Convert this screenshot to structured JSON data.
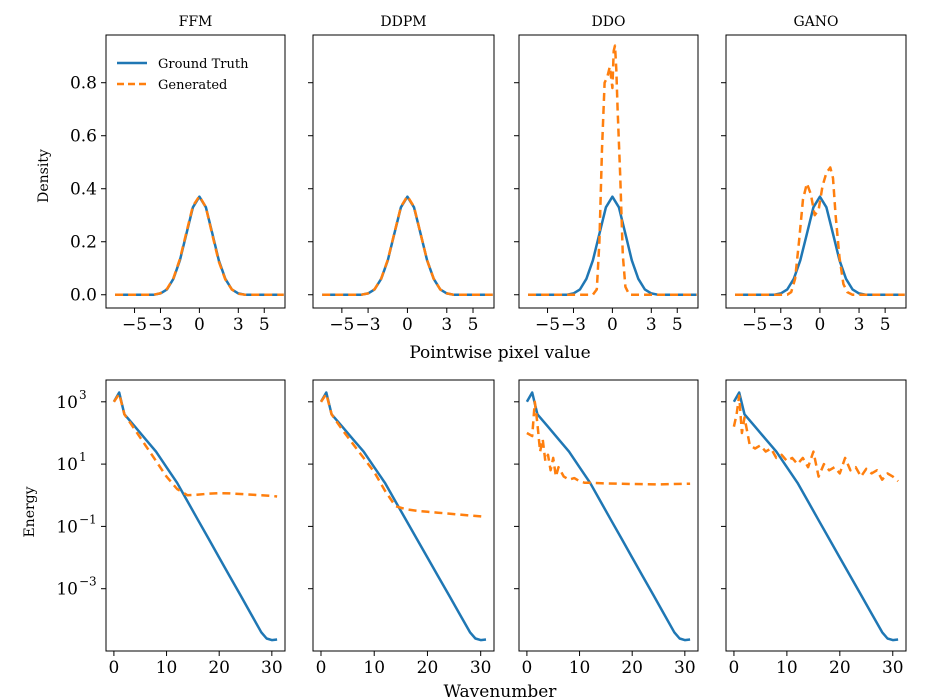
{
  "colors": {
    "ground_truth": "#1f77b4",
    "generated": "#ff7f0e"
  },
  "legend": {
    "ground_truth": "Ground Truth",
    "generated": "Generated"
  },
  "row_labels": {
    "top_xlabel": "Pointwise pixel value",
    "top_ylabel": "Density",
    "bottom_xlabel": "Wavenumber",
    "bottom_ylabel": "Energy"
  },
  "panels": [
    {
      "title": "FFM"
    },
    {
      "title": "DDPM"
    },
    {
      "title": "DDO"
    },
    {
      "title": "GANO"
    }
  ],
  "chart_data": [
    {
      "type": "line",
      "row": "density",
      "title": "FFM",
      "xlabel": "Pointwise pixel value",
      "ylabel": "Density",
      "xlim": [
        -7.2,
        6.6
      ],
      "ylim": [
        -0.05,
        0.98
      ],
      "xticks": [
        -5,
        -3,
        0,
        3,
        5
      ],
      "xtick_labels": [
        "−5",
        "−3",
        "0",
        "3",
        "5"
      ],
      "yticks": [
        0.0,
        0.2,
        0.4,
        0.6,
        0.8
      ],
      "ytick_labels": [
        "0.0",
        "0.2",
        "0.4",
        "0.6",
        "0.8"
      ],
      "legend_position": "top-left",
      "series": [
        {
          "name": "Ground Truth",
          "x": [
            -6.5,
            -3.5,
            -3,
            -2.5,
            -2,
            -1.5,
            -1,
            -0.5,
            0,
            0.5,
            1,
            1.5,
            2,
            2.5,
            3,
            3.5,
            6.5
          ],
          "y": [
            0,
            0,
            0.005,
            0.02,
            0.06,
            0.13,
            0.23,
            0.33,
            0.37,
            0.33,
            0.23,
            0.13,
            0.06,
            0.02,
            0.005,
            0,
            0
          ]
        },
        {
          "name": "Generated",
          "x": [
            -6.5,
            -3.5,
            -3,
            -2.5,
            -2,
            -1.5,
            -1,
            -0.5,
            0,
            0.5,
            1,
            1.5,
            2,
            2.5,
            3,
            3.5,
            6.5
          ],
          "y": [
            0,
            0,
            0.006,
            0.022,
            0.062,
            0.135,
            0.235,
            0.335,
            0.372,
            0.33,
            0.225,
            0.125,
            0.058,
            0.02,
            0.004,
            0,
            0
          ]
        }
      ]
    },
    {
      "type": "line",
      "row": "density",
      "title": "DDPM",
      "xlim": [
        -7.2,
        6.6
      ],
      "ylim": [
        -0.05,
        0.98
      ],
      "xticks": [
        -5,
        -3,
        0,
        3,
        5
      ],
      "xtick_labels": [
        "−5",
        "−3",
        "0",
        "3",
        "5"
      ],
      "yticks": [
        0.0,
        0.2,
        0.4,
        0.6,
        0.8
      ],
      "series": [
        {
          "name": "Ground Truth",
          "x": [
            -6.5,
            -3.5,
            -3,
            -2.5,
            -2,
            -1.5,
            -1,
            -0.5,
            0,
            0.5,
            1,
            1.5,
            2,
            2.5,
            3,
            3.5,
            6.5
          ],
          "y": [
            0,
            0,
            0.005,
            0.02,
            0.06,
            0.13,
            0.23,
            0.33,
            0.37,
            0.33,
            0.23,
            0.13,
            0.06,
            0.02,
            0.005,
            0,
            0
          ]
        },
        {
          "name": "Generated",
          "x": [
            -6.5,
            -3.5,
            -3,
            -2.5,
            -2,
            -1.5,
            -1,
            -0.5,
            0,
            0.5,
            1,
            1.5,
            2,
            2.5,
            3,
            3.5,
            6.5
          ],
          "y": [
            0,
            0,
            0.005,
            0.021,
            0.061,
            0.132,
            0.232,
            0.332,
            0.372,
            0.332,
            0.23,
            0.13,
            0.06,
            0.02,
            0.005,
            0,
            0
          ]
        }
      ]
    },
    {
      "type": "line",
      "row": "density",
      "title": "DDO",
      "xlim": [
        -7.2,
        6.6
      ],
      "ylim": [
        -0.05,
        0.98
      ],
      "xticks": [
        -5,
        -3,
        0,
        3,
        5
      ],
      "xtick_labels": [
        "−5",
        "−3",
        "0",
        "3",
        "5"
      ],
      "yticks": [
        0.0,
        0.2,
        0.4,
        0.6,
        0.8
      ],
      "series": [
        {
          "name": "Ground Truth",
          "x": [
            -6.5,
            -3.5,
            -3,
            -2.5,
            -2,
            -1.5,
            -1,
            -0.5,
            0,
            0.5,
            1,
            1.5,
            2,
            2.5,
            3,
            3.5,
            6.5
          ],
          "y": [
            0,
            0,
            0.005,
            0.02,
            0.06,
            0.13,
            0.23,
            0.33,
            0.37,
            0.33,
            0.23,
            0.13,
            0.06,
            0.02,
            0.005,
            0,
            0
          ]
        },
        {
          "name": "Generated",
          "x": [
            -6.5,
            -1.5,
            -1.2,
            -1.0,
            -0.8,
            -0.6,
            -0.4,
            -0.2,
            0,
            0.1,
            0.2,
            0.3,
            0.4,
            0.6,
            0.8,
            1.0,
            1.3,
            6.5
          ],
          "y": [
            0,
            0,
            0.02,
            0.2,
            0.55,
            0.8,
            0.82,
            0.86,
            0.78,
            0.92,
            0.94,
            0.85,
            0.7,
            0.45,
            0.15,
            0.03,
            0,
            0
          ]
        }
      ]
    },
    {
      "type": "line",
      "row": "density",
      "title": "GANO",
      "xlim": [
        -7.2,
        6.6
      ],
      "ylim": [
        -0.05,
        0.98
      ],
      "xticks": [
        -5,
        -3,
        0,
        3,
        5
      ],
      "xtick_labels": [
        "−5",
        "−3",
        "0",
        "3",
        "5"
      ],
      "yticks": [
        0.0,
        0.2,
        0.4,
        0.6,
        0.8
      ],
      "series": [
        {
          "name": "Ground Truth",
          "x": [
            -6.5,
            -3.5,
            -3,
            -2.5,
            -2,
            -1.5,
            -1,
            -0.5,
            0,
            0.5,
            1,
            1.5,
            2,
            2.5,
            3,
            3.5,
            6.5
          ],
          "y": [
            0,
            0,
            0.005,
            0.02,
            0.06,
            0.13,
            0.23,
            0.33,
            0.37,
            0.33,
            0.23,
            0.13,
            0.06,
            0.02,
            0.005,
            0,
            0
          ]
        },
        {
          "name": "Generated",
          "x": [
            -6.5,
            -2.5,
            -2.2,
            -1.9,
            -1.6,
            -1.3,
            -1.0,
            -0.7,
            -0.4,
            -0.1,
            0.2,
            0.5,
            0.8,
            1.0,
            1.2,
            1.5,
            1.8,
            2.1,
            2.5,
            6.5
          ],
          "y": [
            0,
            0,
            0.01,
            0.06,
            0.2,
            0.36,
            0.42,
            0.38,
            0.3,
            0.32,
            0.41,
            0.46,
            0.48,
            0.44,
            0.3,
            0.14,
            0.04,
            0.01,
            0,
            0
          ]
        }
      ]
    },
    {
      "type": "line",
      "row": "spectrum",
      "title": "FFM",
      "xlabel": "Wavenumber",
      "ylabel": "Energy",
      "yscale": "log",
      "xlim": [
        -1.5,
        32.5
      ],
      "ylim_log10": [
        -5.0,
        3.7
      ],
      "xticks": [
        0,
        10,
        20,
        30
      ],
      "xtick_labels": [
        "0",
        "10",
        "20",
        "30"
      ],
      "yticks_log10": [
        3,
        1,
        -1,
        -3
      ],
      "ytick_labels": [
        "10",
        "10",
        "10",
        "10"
      ],
      "ytick_exponents": [
        "3",
        "1",
        "−1",
        "−3"
      ],
      "series": [
        {
          "name": "Ground Truth",
          "x": [
            0,
            1,
            2,
            4,
            6,
            8,
            10,
            12,
            14,
            16,
            18,
            20,
            22,
            24,
            26,
            28,
            29,
            30,
            31
          ],
          "log10y": [
            3.0,
            3.3,
            2.6,
            2.2,
            1.8,
            1.4,
            0.9,
            0.4,
            -0.2,
            -0.8,
            -1.4,
            -2.0,
            -2.6,
            -3.2,
            -3.8,
            -4.4,
            -4.6,
            -4.65,
            -4.63
          ]
        },
        {
          "name": "Generated",
          "x": [
            0,
            1,
            2,
            4,
            6,
            8,
            10,
            12,
            14,
            16,
            18,
            20,
            22,
            24,
            26,
            28,
            30,
            31
          ],
          "log10y": [
            3.0,
            3.25,
            2.6,
            2.1,
            1.6,
            1.1,
            0.6,
            0.2,
            0.0,
            0.02,
            0.05,
            0.07,
            0.06,
            0.04,
            0.02,
            0.0,
            -0.02,
            -0.04
          ]
        }
      ]
    },
    {
      "type": "line",
      "row": "spectrum",
      "title": "DDPM",
      "yscale": "log",
      "xlim": [
        -1.5,
        32.5
      ],
      "ylim_log10": [
        -5.0,
        3.7
      ],
      "xticks": [
        0,
        10,
        20,
        30
      ],
      "xtick_labels": [
        "0",
        "10",
        "20",
        "30"
      ],
      "series": [
        {
          "name": "Ground Truth",
          "x": [
            0,
            1,
            2,
            4,
            6,
            8,
            10,
            12,
            14,
            16,
            18,
            20,
            22,
            24,
            26,
            28,
            29,
            30,
            31
          ],
          "log10y": [
            3.0,
            3.3,
            2.6,
            2.2,
            1.8,
            1.4,
            0.9,
            0.4,
            -0.2,
            -0.8,
            -1.4,
            -2.0,
            -2.6,
            -3.2,
            -3.8,
            -4.4,
            -4.6,
            -4.65,
            -4.63
          ]
        },
        {
          "name": "Generated",
          "x": [
            0,
            1,
            2,
            4,
            6,
            8,
            10,
            12,
            14,
            16,
            18,
            20,
            22,
            24,
            26,
            28,
            30,
            31
          ],
          "log10y": [
            3.0,
            3.25,
            2.6,
            2.1,
            1.65,
            1.2,
            0.75,
            0.15,
            -0.35,
            -0.45,
            -0.5,
            -0.53,
            -0.56,
            -0.59,
            -0.62,
            -0.65,
            -0.68,
            -0.7
          ]
        }
      ]
    },
    {
      "type": "line",
      "row": "spectrum",
      "title": "DDO",
      "yscale": "log",
      "xlim": [
        -1.5,
        32.5
      ],
      "ylim_log10": [
        -5.0,
        3.7
      ],
      "xticks": [
        0,
        10,
        20,
        30
      ],
      "xtick_labels": [
        "0",
        "10",
        "20",
        "30"
      ],
      "series": [
        {
          "name": "Ground Truth",
          "x": [
            0,
            1,
            2,
            4,
            6,
            8,
            10,
            12,
            14,
            16,
            18,
            20,
            22,
            24,
            26,
            28,
            29,
            30,
            31
          ],
          "log10y": [
            3.0,
            3.3,
            2.6,
            2.2,
            1.8,
            1.4,
            0.9,
            0.4,
            -0.2,
            -0.8,
            -1.4,
            -2.0,
            -2.6,
            -3.2,
            -3.8,
            -4.4,
            -4.6,
            -4.65,
            -4.63
          ]
        },
        {
          "name": "Generated",
          "x": [
            0,
            1,
            1.5,
            2,
            2.5,
            3,
            3.5,
            4,
            4.5,
            5,
            5.5,
            6,
            7,
            8,
            9,
            10,
            11,
            12,
            15,
            20,
            25,
            31
          ],
          "log10y": [
            2.0,
            1.9,
            3.0,
            2.3,
            1.4,
            1.8,
            1.1,
            1.3,
            0.8,
            1.2,
            0.6,
            0.9,
            0.6,
            0.5,
            0.55,
            0.45,
            0.4,
            0.4,
            0.38,
            0.36,
            0.35,
            0.37
          ]
        }
      ]
    },
    {
      "type": "line",
      "row": "spectrum",
      "title": "GANO",
      "yscale": "log",
      "xlim": [
        -1.5,
        32.5
      ],
      "ylim_log10": [
        -5.0,
        3.7
      ],
      "xticks": [
        0,
        10,
        20,
        30
      ],
      "xtick_labels": [
        "0",
        "10",
        "20",
        "30"
      ],
      "series": [
        {
          "name": "Ground Truth",
          "x": [
            0,
            1,
            2,
            4,
            6,
            8,
            10,
            12,
            14,
            16,
            18,
            20,
            22,
            24,
            26,
            28,
            29,
            30,
            31
          ],
          "log10y": [
            3.0,
            3.3,
            2.6,
            2.2,
            1.8,
            1.4,
            0.9,
            0.4,
            -0.2,
            -0.8,
            -1.4,
            -2.0,
            -2.6,
            -3.2,
            -3.8,
            -4.4,
            -4.6,
            -4.65,
            -4.63
          ]
        },
        {
          "name": "Generated",
          "x": [
            0,
            0.5,
            1,
            1.5,
            2,
            3,
            4,
            5,
            6,
            7,
            8,
            9,
            10,
            11,
            12,
            13,
            14,
            15,
            16,
            17,
            18,
            19,
            20,
            21,
            22,
            23,
            24,
            25,
            26,
            27,
            28,
            29,
            30,
            31
          ],
          "log10y": [
            2.2,
            2.6,
            3.2,
            2.0,
            2.5,
            1.6,
            1.5,
            1.6,
            1.4,
            1.5,
            1.2,
            1.3,
            1.1,
            1.2,
            1.0,
            1.2,
            0.9,
            1.4,
            0.6,
            1.0,
            0.8,
            0.9,
            0.7,
            1.2,
            0.8,
            0.9,
            0.6,
            0.85,
            0.7,
            0.8,
            0.5,
            0.7,
            0.6,
            0.45
          ]
        }
      ]
    }
  ]
}
